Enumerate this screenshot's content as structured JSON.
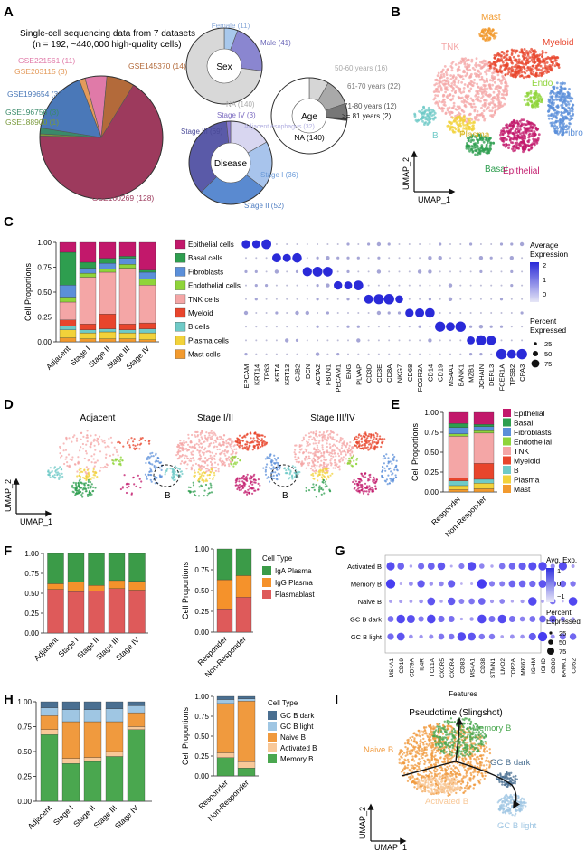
{
  "panel_labels": [
    "A",
    "B",
    "C",
    "D",
    "E",
    "F",
    "G",
    "H",
    "I"
  ],
  "colors": {
    "Epithelial": "#c2186b",
    "Basal": "#2e9e4f",
    "Fibroblasts": "#5b8fd9",
    "Endothelial": "#8fd43a",
    "TNK": "#f4a6a6",
    "Myeloid": "#e8452c",
    "B": "#6fcac7",
    "Plasma": "#f2d23a",
    "Mast": "#f29a2e",
    "IgA": "#3b9b48",
    "IgG": "#f5922b",
    "Plasmablast": "#de5a5a",
    "GCdark": "#4a6f91",
    "GClight": "#9fc6e3",
    "NaiveB": "#f09a3e",
    "ActivatedB": "#f8c898",
    "MemoryB": "#4aa74f",
    "dot": "#2a2ad8"
  },
  "A": {
    "title_line1": "Single-cell sequencing data from 7 datasets",
    "title_line2": "(n = 192, ~440,000 high-quality cells)",
    "datasets": [
      {
        "label": "GSE160269 (128)",
        "value": 128,
        "color": "#9d3a5d"
      },
      {
        "label": "GSE188900 (1)",
        "value": 1,
        "color": "#7a9a3c"
      },
      {
        "label": "GSE196756 (3)",
        "value": 3,
        "color": "#3a8a6a"
      },
      {
        "label": "GSE199654 (32)",
        "value": 32,
        "color": "#4a78b8"
      },
      {
        "label": "GSE203115 (3)",
        "value": 3,
        "color": "#e39a5a"
      },
      {
        "label": "GSE221561 (11)",
        "value": 11,
        "color": "#e07aa8"
      },
      {
        "label": "GSE145370 (14)",
        "value": 14,
        "color": "#b36a3a"
      }
    ],
    "sex": {
      "center": "Sex",
      "slices": [
        {
          "label": "Female (11)",
          "value": 11,
          "color": "#a8c8ec"
        },
        {
          "label": "Male (41)",
          "value": 41,
          "color": "#8a86d0"
        },
        {
          "label": "NA (140)",
          "value": 140,
          "color": "#d8d8d8"
        }
      ]
    },
    "age": {
      "center": "Age",
      "slices": [
        {
          "label": "50-60 years (16)",
          "value": 16,
          "color": "#d6d6d6"
        },
        {
          "label": "61-70 years (22)",
          "value": 22,
          "color": "#a9a9a9"
        },
        {
          "label": "71-80 years (12)",
          "value": 12,
          "color": "#777777"
        },
        {
          "label": ">= 81 years (2)",
          "value": 2,
          "color": "#3a3a3a"
        },
        {
          "label": "NA (140)",
          "value": 140,
          "color": "#ffffff"
        }
      ]
    },
    "disease": {
      "center": "Disease",
      "slices": [
        {
          "label": "Adjacent esophagus (32)",
          "value": 32,
          "color": "#d8d6f0"
        },
        {
          "label": "Stage I (36)",
          "value": 36,
          "color": "#a8c4ec"
        },
        {
          "label": "Stage II (52)",
          "value": 52,
          "color": "#5a8ad0"
        },
        {
          "label": "Stage III (69)",
          "value": 69,
          "color": "#5a5aa8"
        },
        {
          "label": "Stage IV (3)",
          "value": 3,
          "color": "#8a7ad0"
        }
      ]
    }
  },
  "B": {
    "clusters": [
      "Mast",
      "TNK",
      "Myeloid",
      "Endo",
      "B",
      "Plasma",
      "Basal",
      "Epithelial",
      "Fibro"
    ],
    "xlabel": "UMAP_1",
    "ylabel": "UMAP_2"
  },
  "C": {
    "ylabel": "Cell Proportions",
    "yticks": [
      "1.00",
      "0.75",
      "0.50",
      "0.25",
      "0.00"
    ],
    "groups": [
      "Adjacent",
      "Stage I",
      "Stage II",
      "Stage III",
      "Stage IV"
    ],
    "celltypes": [
      "Epithelial",
      "Basal",
      "Fibroblasts",
      "Endothelial",
      "TNK",
      "Myeloid",
      "B",
      "Plasma",
      "Mast"
    ],
    "stack_bottom_to_top": [
      "Mast",
      "Plasma",
      "B",
      "Myeloid",
      "TNK",
      "Endothelial",
      "Fibroblasts",
      "Basal",
      "Epithelial"
    ],
    "proportions": {
      "Adjacent": [
        0.04,
        0.08,
        0.04,
        0.06,
        0.18,
        0.05,
        0.12,
        0.33,
        0.1
      ],
      "Stage I": [
        0.03,
        0.06,
        0.03,
        0.06,
        0.47,
        0.04,
        0.05,
        0.06,
        0.2
      ],
      "Stage II": [
        0.03,
        0.07,
        0.03,
        0.15,
        0.42,
        0.03,
        0.06,
        0.05,
        0.16
      ],
      "Stage III": [
        0.03,
        0.06,
        0.03,
        0.06,
        0.56,
        0.04,
        0.06,
        0.02,
        0.14
      ],
      "Stage IV": [
        0.02,
        0.07,
        0.04,
        0.06,
        0.38,
        0.06,
        0.07,
        0.02,
        0.28
      ]
    },
    "dot_rows": [
      {
        "label": "Epithelial cells",
        "type": "Epithelial"
      },
      {
        "label": "Basal cells",
        "type": "Basal"
      },
      {
        "label": "Fibroblasts",
        "type": "Fibroblasts"
      },
      {
        "label": "Endothelial cells",
        "type": "Endothelial"
      },
      {
        "label": "TNK cells",
        "type": "TNK"
      },
      {
        "label": "Myeloid",
        "type": "Myeloid"
      },
      {
        "label": "B cells",
        "type": "B"
      },
      {
        "label": "Plasma cells",
        "type": "Plasma"
      },
      {
        "label": "Mast cells",
        "type": "Mast"
      }
    ],
    "genes": [
      "EPCAM",
      "KRT14",
      "TP63",
      "KRT4",
      "KRT13",
      "GJB2",
      "DCN",
      "ACTA2",
      "FBLN1",
      "PECAM1",
      "ENG",
      "PLVAP",
      "CD3D",
      "CD3E",
      "CD8A",
      "NKG7",
      "CD68",
      "FCGR3A",
      "CD14",
      "CD19",
      "MS4A1",
      "BANK1",
      "MZB1",
      "JCHAIN",
      "DERL3",
      "FCER1A",
      "TPSB2",
      "CPA3"
    ],
    "gene_row": [
      0,
      0,
      0,
      1,
      1,
      1,
      2,
      2,
      2,
      3,
      3,
      3,
      4,
      4,
      4,
      4,
      5,
      5,
      5,
      6,
      6,
      6,
      7,
      7,
      7,
      8,
      8,
      8
    ],
    "legend_expr_title": "Average Expression",
    "legend_expr_ticks": [
      "2",
      "1",
      "0"
    ],
    "legend_pct_title": "Percent Expressed",
    "legend_pct_ticks": [
      "25",
      "50",
      "75"
    ]
  },
  "D": {
    "titles": [
      "Adjacent",
      "Stage I/II",
      "Stage III/IV"
    ],
    "circle_label": "B",
    "xlabel": "UMAP_1",
    "ylabel": "UMAP_2"
  },
  "E": {
    "ylabel": "Cell Proportions",
    "yticks": [
      "1.00",
      "0.75",
      "0.50",
      "0.25",
      "0.00"
    ],
    "groups": [
      "Responder",
      "Non-Responder"
    ],
    "legend": [
      "Epithelial",
      "Basal",
      "Fibroblasts",
      "Endothelial",
      "TNK",
      "Myeloid",
      "B",
      "Plasma",
      "Mast"
    ],
    "proportions": {
      "Responder": [
        0.03,
        0.05,
        0.06,
        0.04,
        0.52,
        0.03,
        0.08,
        0.05,
        0.14
      ],
      "Non-Responder": [
        0.04,
        0.07,
        0.05,
        0.2,
        0.38,
        0.03,
        0.05,
        0.03,
        0.15
      ]
    }
  },
  "F": {
    "yticks_left": [
      "1.00",
      "0.75",
      "0.50",
      "0.25",
      "0.00"
    ],
    "groups": [
      "Adjacent",
      "Stage I",
      "Stage II",
      "Stage III",
      "Stage IV"
    ],
    "stack": [
      "Plasmablast",
      "IgG Plasma",
      "IgA Plasma"
    ],
    "proportions": {
      "Adjacent": [
        0.55,
        0.07,
        0.38
      ],
      "Stage I": [
        0.52,
        0.12,
        0.36
      ],
      "Stage II": [
        0.53,
        0.07,
        0.4
      ],
      "Stage III": [
        0.56,
        0.1,
        0.34
      ],
      "Stage IV": [
        0.54,
        0.11,
        0.35
      ]
    },
    "right_ylabel": "Cell Proportions",
    "right_groups": [
      "Responder",
      "Non-Responder"
    ],
    "right_proportions": {
      "Responder": [
        0.28,
        0.35,
        0.37
      ],
      "Non-Responder": [
        0.42,
        0.26,
        0.32
      ]
    },
    "legend_title": "Cell Type",
    "legend": [
      "IgA Plasma",
      "IgG Plasma",
      "Plasmablast"
    ]
  },
  "G": {
    "rows": [
      "Activated B",
      "Memory B",
      "Naive B",
      "GC B dark",
      "GC B light"
    ],
    "genes": [
      "MS4A1",
      "CD19",
      "CD79A",
      "IL4R",
      "TCL1A",
      "CXCR5",
      "CXCR4",
      "CD83",
      "MS4A1",
      "CD38",
      "STMN1",
      "LMO2",
      "TOP2A",
      "MKI67",
      "IGHM",
      "IGHD",
      "CD80",
      "BANK1",
      "CD52"
    ],
    "xlabel": "Features",
    "legend_expr_title": "Avg. Exp.",
    "legend_expr_ticks": [
      "1",
      "0",
      "−1"
    ],
    "legend_pct_title": "Percent Expressed",
    "legend_pct_ticks": [
      "25",
      "50",
      "75"
    ]
  },
  "H": {
    "yticks_left": [
      "1.00",
      "0.75",
      "0.50",
      "0.25",
      "0.00"
    ],
    "groups": [
      "Adjacent",
      "Stage I",
      "Stage II",
      "Stage III",
      "Stage IV"
    ],
    "stack": [
      "Memory B",
      "Activated B",
      "Naive B",
      "GC B light",
      "GC B dark"
    ],
    "proportions": {
      "Adjacent": [
        0.67,
        0.05,
        0.14,
        0.08,
        0.06
      ],
      "Stage I": [
        0.38,
        0.05,
        0.37,
        0.12,
        0.08
      ],
      "Stage II": [
        0.4,
        0.04,
        0.36,
        0.12,
        0.08
      ],
      "Stage III": [
        0.45,
        0.05,
        0.3,
        0.13,
        0.07
      ],
      "Stage IV": [
        0.72,
        0.03,
        0.14,
        0.07,
        0.04
      ]
    },
    "right_ylabel": "Cell Proportions",
    "right_groups": [
      "Responder",
      "Non-Responder"
    ],
    "right_proportions": {
      "Responder": [
        0.23,
        0.06,
        0.62,
        0.05,
        0.04
      ],
      "Non-Responder": [
        0.1,
        0.08,
        0.76,
        0.03,
        0.03
      ]
    },
    "legend_title": "Cell Type",
    "legend": [
      "GC B dark",
      "GC B light",
      "Naive B",
      "Activated B",
      "Memory B"
    ]
  },
  "I": {
    "title": "Pseudotime (Slingshot)",
    "labels": [
      "Memory B",
      "Naive B",
      "GC B dark",
      "Activated B",
      "GC B light"
    ],
    "xlabel": "UMAP_1",
    "ylabel": "UMAP_2"
  }
}
